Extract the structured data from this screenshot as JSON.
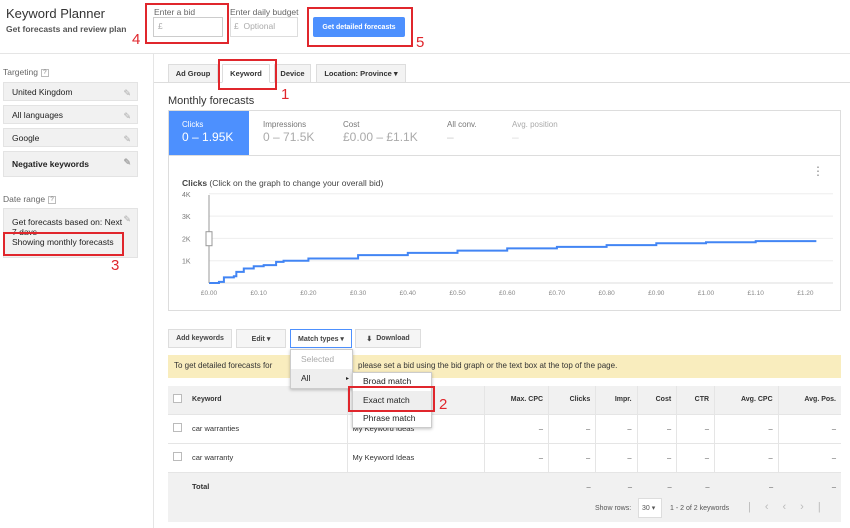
{
  "header": {
    "title": "Keyword Planner",
    "subtitle": "Get forecasts and review plan",
    "bid_label": "Enter a bid",
    "bid_currency": "£",
    "bid_value": "",
    "budget_label": "Enter daily budget",
    "budget_currency": "£",
    "budget_placeholder": "Optional",
    "forecast_button": "Get detailed forecasts"
  },
  "annotations": {
    "n1": "1",
    "n2": "2",
    "n3": "3",
    "n4": "4",
    "n5": "5",
    "color": "#e0262c"
  },
  "sidebar": {
    "targeting_label": "Targeting",
    "help": "?",
    "items": [
      {
        "label": "United Kingdom"
      },
      {
        "label": "All languages"
      },
      {
        "label": "Google"
      },
      {
        "label": "Negative keywords"
      }
    ],
    "date_label": "Date range",
    "date_text": "Get forecasts based on: Next 7 days",
    "date_showing": "Showing monthly forecasts"
  },
  "tabs": [
    {
      "label": "Ad Group"
    },
    {
      "label": "Keyword",
      "active": true
    },
    {
      "label": "Device"
    },
    {
      "label": "Location: Province ▾"
    }
  ],
  "forecasts": {
    "title": "Monthly forecasts",
    "metrics": [
      {
        "label": "Clicks",
        "value": "0 – 1.95K",
        "active": true
      },
      {
        "label": "Impressions",
        "value": "0 – 71.5K"
      },
      {
        "label": "Cost",
        "value": "£0.00 – £1.1K"
      },
      {
        "label": "All conv.",
        "value": "–"
      },
      {
        "label": "Avg. position",
        "value": "–"
      }
    ],
    "accent": "#4d90fe"
  },
  "chart_data": {
    "type": "line",
    "title": "Clicks",
    "subtitle": "(Click on the graph to change your overall bid)",
    "x_ticks": [
      "£0.00",
      "£0.10",
      "£0.20",
      "£0.30",
      "£0.40",
      "£0.50",
      "£0.60",
      "£0.70",
      "£0.80",
      "£0.90",
      "£1.00",
      "£1.10",
      "£1.20"
    ],
    "y_ticks": [
      "1K",
      "2K",
      "3K",
      "4K"
    ],
    "xlim": [
      0,
      1.22
    ],
    "ylim": [
      0,
      4000
    ],
    "grid": true,
    "step": true,
    "series": [
      {
        "x": [
          0,
          0.02,
          0.03,
          0.05,
          0.055,
          0.07,
          0.09,
          0.11,
          0.13,
          0.135,
          0.15,
          0.2,
          0.3,
          0.4,
          0.5,
          0.6,
          0.7,
          0.8,
          0.9,
          1.0,
          1.1,
          1.22
        ],
        "y": [
          0,
          50,
          250,
          300,
          500,
          650,
          750,
          800,
          800,
          950,
          1000,
          1100,
          1250,
          1350,
          1450,
          1550,
          1620,
          1700,
          1780,
          1830,
          1880,
          1920
        ],
        "color": "#4285f4"
      }
    ],
    "selected_bid": 0.0
  },
  "toolbar": {
    "add": "Add keywords",
    "edit": "Edit ▾",
    "match": "Match types ▾",
    "download": "Download"
  },
  "banner": {
    "text_left": "To get detailed forecasts for",
    "text_right": "please set a bid using the bid graph or the text box at the top of the page."
  },
  "match_menu": {
    "selected": "Selected",
    "all": "All",
    "sub": [
      "Broad match",
      "Exact match",
      "Phrase match"
    ]
  },
  "table": {
    "columns": [
      "Keyword",
      "",
      "Max. CPC",
      "Clicks",
      "Impr.",
      "Cost",
      "CTR",
      "Avg. CPC",
      "Avg. Pos."
    ],
    "rows": [
      {
        "keyword": "car warranties",
        "group": "My Keyword Ideas",
        "vals": [
          "–",
          "–",
          "–",
          "–",
          "–",
          "–",
          "–"
        ]
      },
      {
        "keyword": "car warranty",
        "group": "My Keyword Ideas",
        "vals": [
          "–",
          "–",
          "–",
          "–",
          "–",
          "–",
          "–"
        ]
      }
    ],
    "total": {
      "label": "Total",
      "vals": [
        "",
        "–",
        "–",
        "–",
        "–",
        "–",
        "–"
      ]
    }
  },
  "pagination": {
    "show_rows": "Show rows:",
    "rows": "30 ▾",
    "range": "1 - 2 of 2 keywords"
  }
}
